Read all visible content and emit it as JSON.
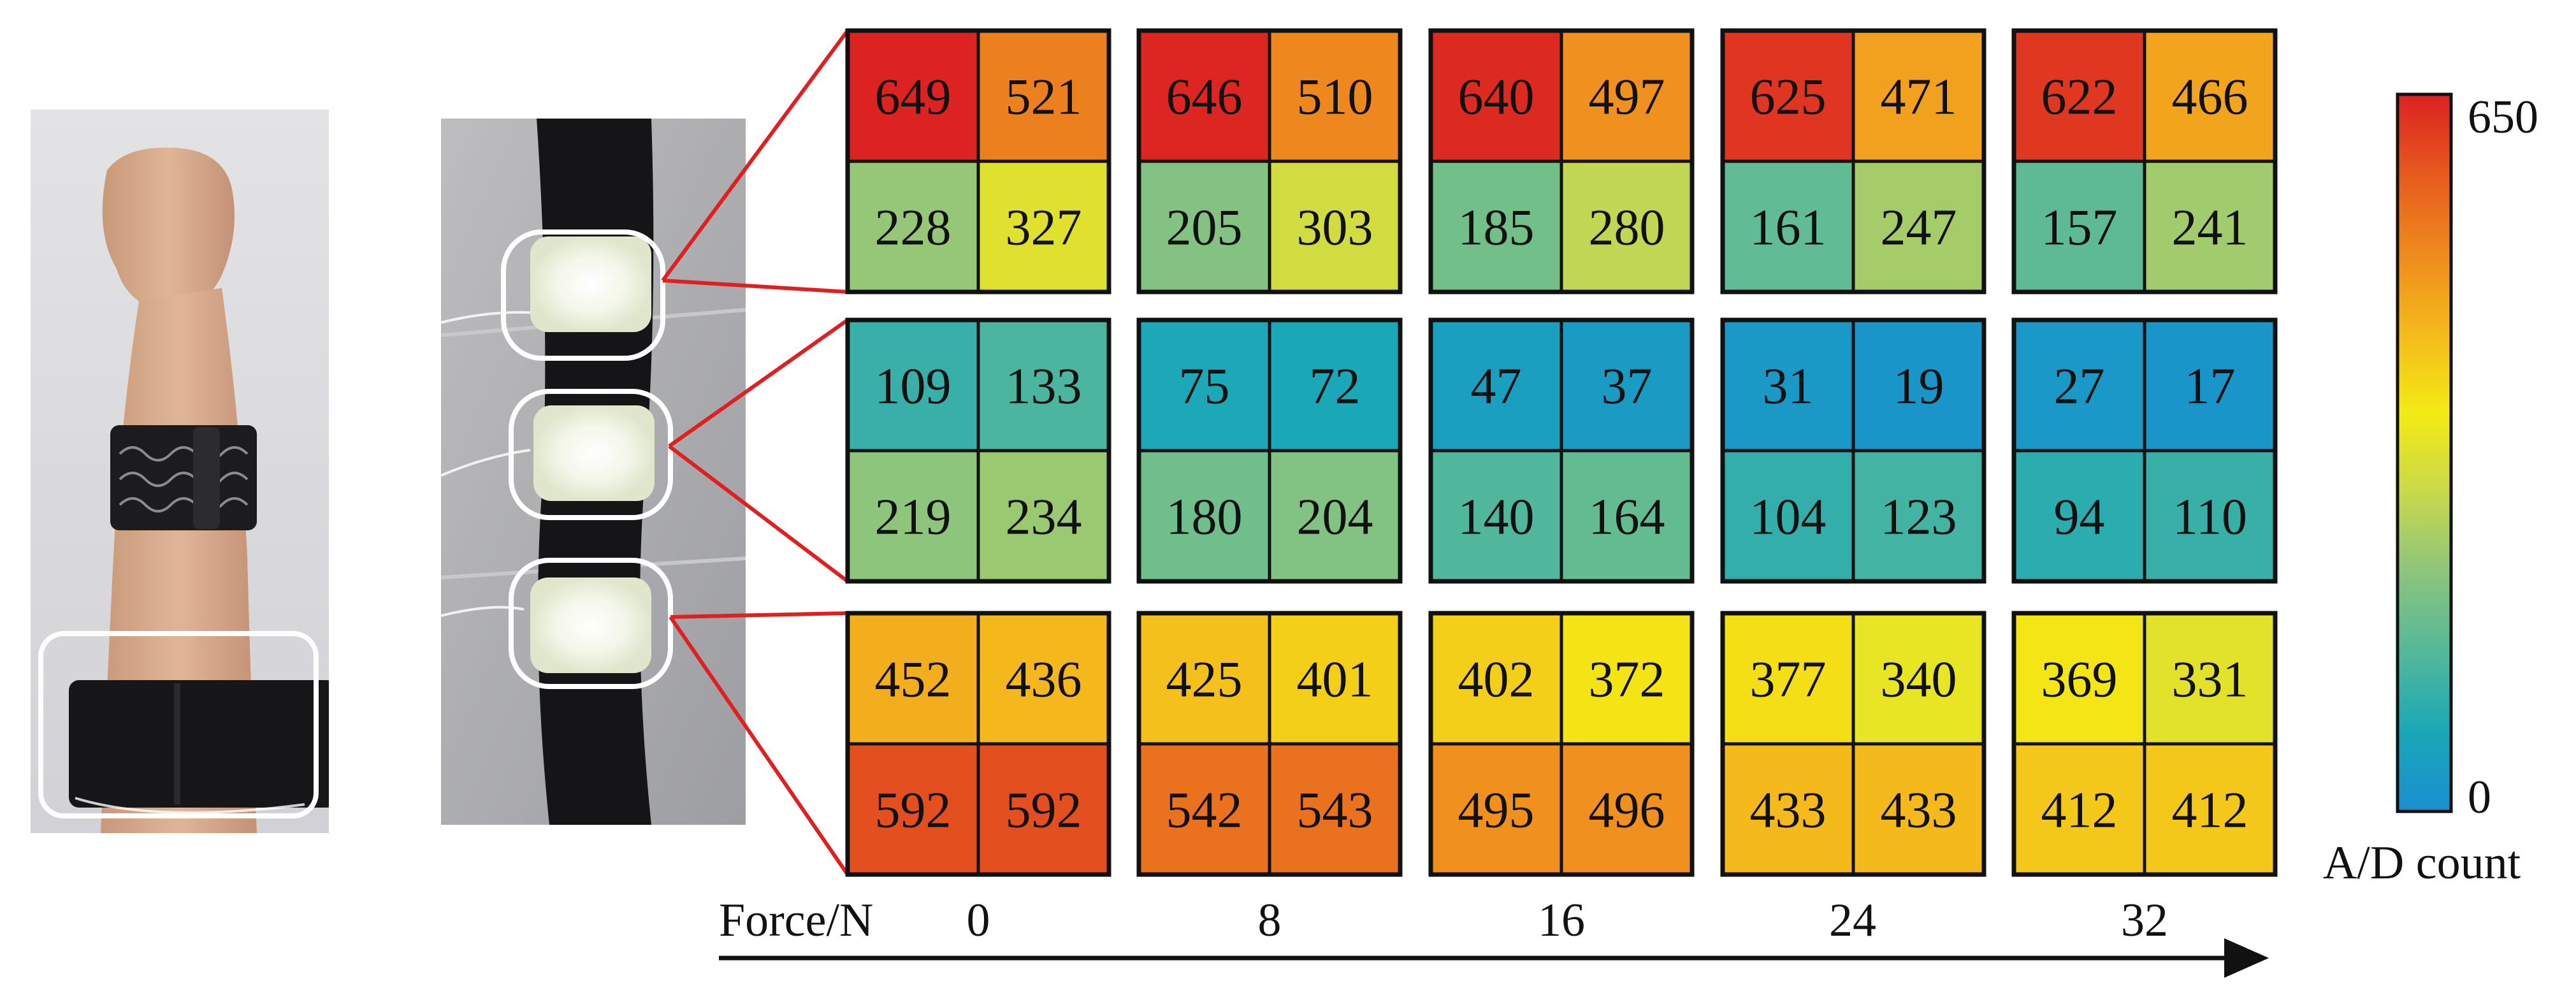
{
  "force_axis": {
    "label": "Force/N",
    "values": [
      "0",
      "8",
      "16",
      "24",
      "32"
    ]
  },
  "colorbar": {
    "max_label": "650",
    "min_label": "0",
    "title": "A/D count",
    "range": [
      0,
      650
    ],
    "colormap": "blue-teal-green-yellow-orange-red",
    "stops": [
      "#1a8fd0",
      "#1aa7b8",
      "#54b89a",
      "#8cc47e",
      "#c9d84c",
      "#f4ea14",
      "#f4ba1c",
      "#ef8a1e",
      "#e65a1e",
      "#dc2222"
    ]
  },
  "chart_data": {
    "type": "heatmap",
    "x": [
      0,
      8,
      16,
      24,
      32
    ],
    "sensor_matrix": [
      [
        [
          [
            649,
            521
          ],
          [
            228,
            327
          ]
        ],
        [
          [
            646,
            510
          ],
          [
            205,
            303
          ]
        ],
        [
          [
            640,
            497
          ],
          [
            185,
            280
          ]
        ],
        [
          [
            625,
            471
          ],
          [
            161,
            247
          ]
        ],
        [
          [
            622,
            466
          ],
          [
            157,
            241
          ]
        ]
      ],
      [
        [
          [
            109,
            133
          ],
          [
            219,
            234
          ]
        ],
        [
          [
            75,
            72
          ],
          [
            180,
            204
          ]
        ],
        [
          [
            47,
            37
          ],
          [
            140,
            164
          ]
        ],
        [
          [
            31,
            19
          ],
          [
            104,
            123
          ]
        ],
        [
          [
            27,
            17
          ],
          [
            94,
            110
          ]
        ]
      ],
      [
        [
          [
            452,
            436
          ],
          [
            592,
            592
          ]
        ],
        [
          [
            425,
            401
          ],
          [
            542,
            543
          ]
        ],
        [
          [
            402,
            372
          ],
          [
            495,
            496
          ]
        ],
        [
          [
            377,
            340
          ],
          [
            433,
            433
          ]
        ],
        [
          [
            369,
            331
          ],
          [
            412,
            412
          ]
        ]
      ]
    ],
    "value_range": [
      0,
      650
    ]
  },
  "colors": {
    "connector": "#e02020",
    "highlight_ring": "#ffffff",
    "grid_border": "#111111"
  }
}
